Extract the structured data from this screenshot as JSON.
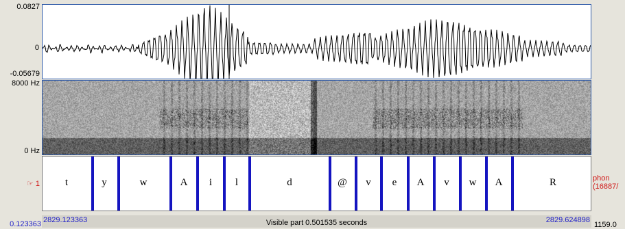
{
  "waveform": {
    "max_label": "0.0827",
    "zero_label": "0",
    "min_label": "-0.05679"
  },
  "spectrogram": {
    "top_label": "8000 Hz",
    "bottom_label": "0 Hz"
  },
  "tier": {
    "number": "1",
    "name": "phon",
    "sub": "(16887/",
    "phones": [
      "t",
      "y",
      "w",
      "A",
      "i",
      "l",
      "d",
      "@",
      "v",
      "e",
      "A",
      "v",
      "w",
      "A",
      "R"
    ]
  },
  "ruler": {
    "left_time": "2829.123363",
    "center": "Visible part 0.501535 seconds",
    "right_time": "2829.624898",
    "left_edge": "0.123363",
    "right_edge": "1159.0"
  },
  "colors": {
    "accent": "#1414c0",
    "tier_marker": "#d01818",
    "pane_border": "#2f5aa8"
  }
}
